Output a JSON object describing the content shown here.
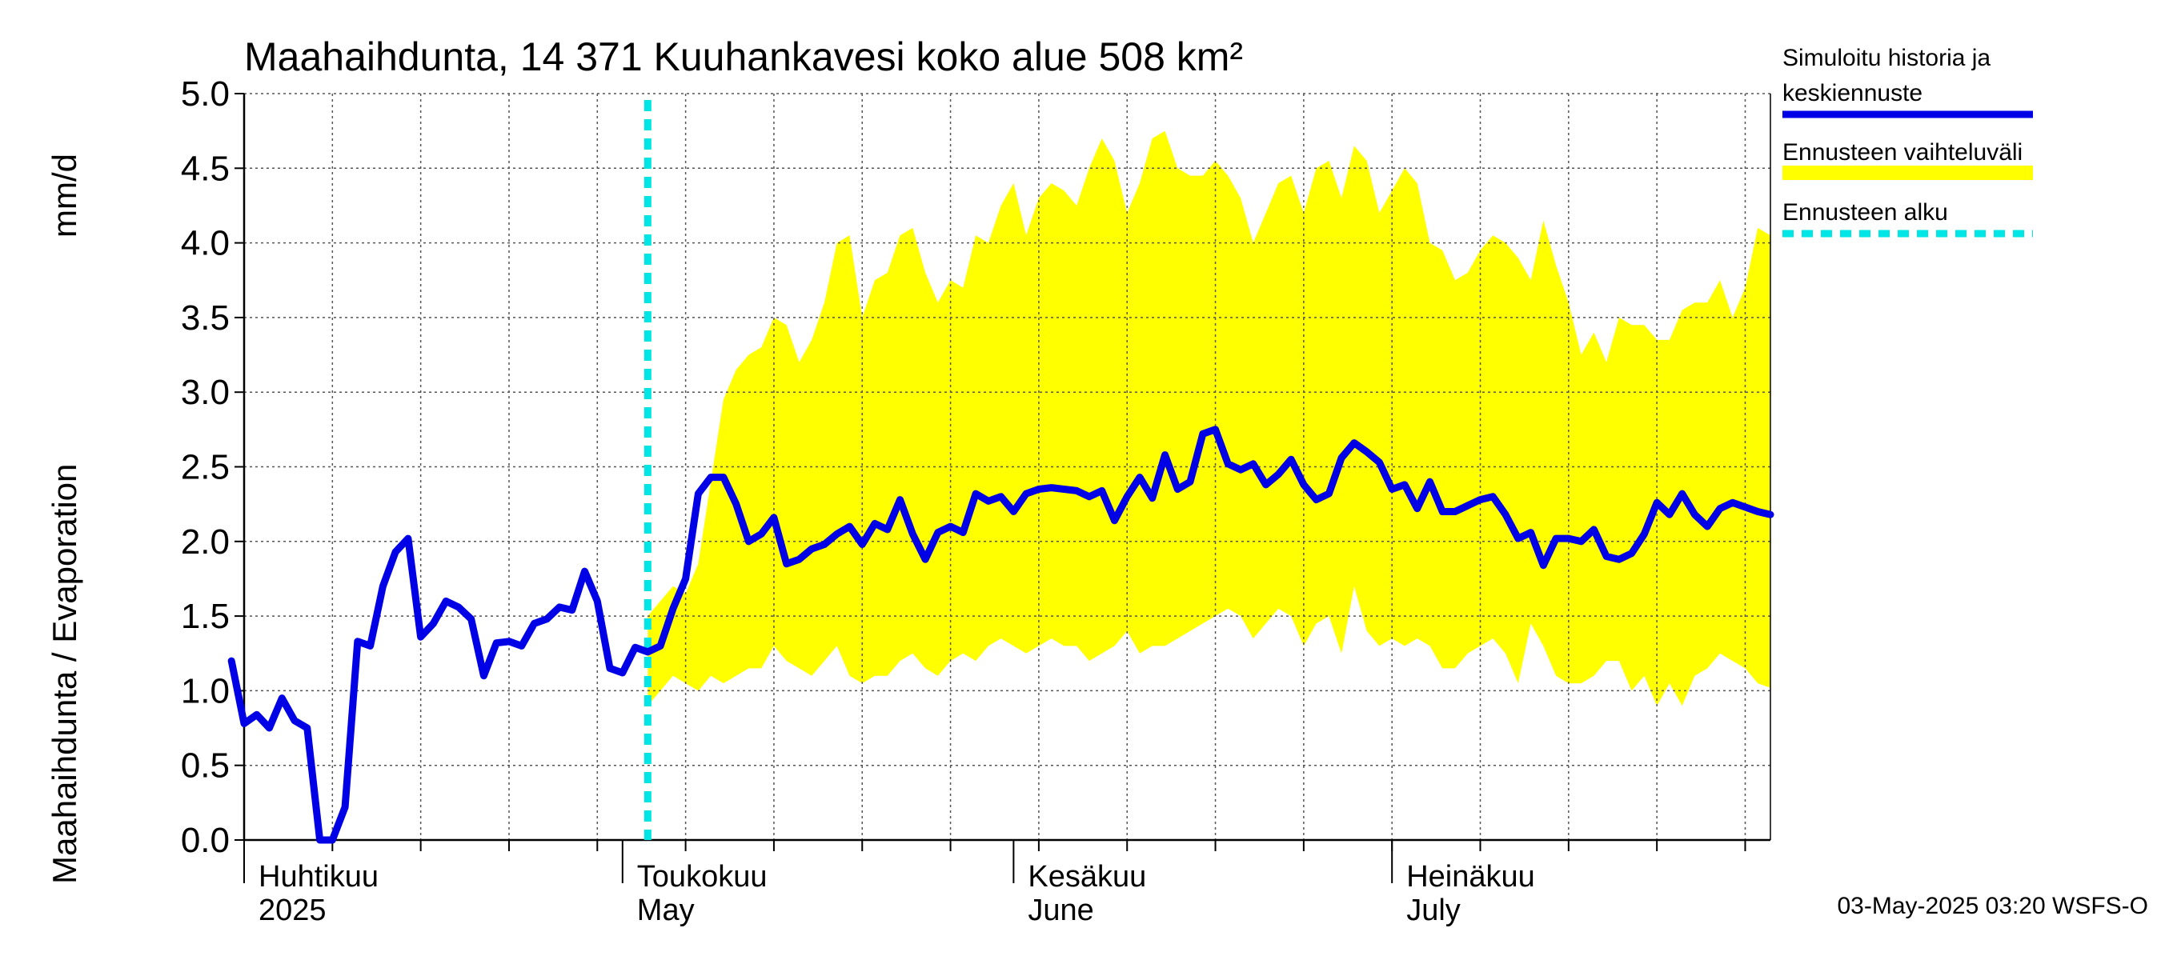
{
  "chart_data": {
    "type": "line",
    "title": "Maahaihdunta, 14 371 Kuuhankavesi koko alue 508 km²",
    "ylabel_left": "Maahaihdunta / Evaporation",
    "ylabel_unit": "mm/d",
    "ylim": [
      0,
      5.0
    ],
    "yticks": [
      "0.0",
      "0.5",
      "1.0",
      "1.5",
      "2.0",
      "2.5",
      "3.0",
      "3.5",
      "4.0",
      "4.5",
      "5.0"
    ],
    "x_range": [
      "2025-04-01",
      "2025-07-31"
    ],
    "x_months": [
      {
        "line1": "Huhtikuu",
        "line2": "2025",
        "date": "2025-04-01"
      },
      {
        "line1": "Toukokuu",
        "line2": "May",
        "date": "2025-05-01"
      },
      {
        "line1": "Kesäkuu",
        "line2": "June",
        "date": "2025-06-01"
      },
      {
        "line1": "Heinäkuu",
        "line2": "July",
        "date": "2025-07-01"
      }
    ],
    "forecast_start": "2025-05-03",
    "grid": true,
    "legend_position": "right",
    "series": [
      {
        "name": "Simuloitu historia ja keskiennuste",
        "color": "#0000e6",
        "x": [
          "2025-03-31",
          "2025-04-01",
          "2025-04-02",
          "2025-04-03",
          "2025-04-04",
          "2025-04-05",
          "2025-04-06",
          "2025-04-07",
          "2025-04-08",
          "2025-04-09",
          "2025-04-10",
          "2025-04-11",
          "2025-04-12",
          "2025-04-13",
          "2025-04-14",
          "2025-04-15",
          "2025-04-16",
          "2025-04-17",
          "2025-04-18",
          "2025-04-19",
          "2025-04-20",
          "2025-04-21",
          "2025-04-22",
          "2025-04-23",
          "2025-04-24",
          "2025-04-25",
          "2025-04-26",
          "2025-04-27",
          "2025-04-28",
          "2025-04-29",
          "2025-04-30",
          "2025-05-01",
          "2025-05-02",
          "2025-05-03",
          "2025-05-04",
          "2025-05-05",
          "2025-05-06",
          "2025-05-07",
          "2025-05-08",
          "2025-05-09",
          "2025-05-10",
          "2025-05-11",
          "2025-05-12",
          "2025-05-13",
          "2025-05-14",
          "2025-05-15",
          "2025-05-16",
          "2025-05-17",
          "2025-05-18",
          "2025-05-19",
          "2025-05-20",
          "2025-05-21",
          "2025-05-22",
          "2025-05-23",
          "2025-05-24",
          "2025-05-25",
          "2025-05-26",
          "2025-05-27",
          "2025-05-28",
          "2025-05-29",
          "2025-05-30",
          "2025-05-31",
          "2025-06-01",
          "2025-06-02",
          "2025-06-03",
          "2025-06-04",
          "2025-06-05",
          "2025-06-06",
          "2025-06-07",
          "2025-06-08",
          "2025-06-09",
          "2025-06-10",
          "2025-06-11",
          "2025-06-12",
          "2025-06-13",
          "2025-06-14",
          "2025-06-15",
          "2025-06-16",
          "2025-06-17",
          "2025-06-18",
          "2025-06-19",
          "2025-06-20",
          "2025-06-21",
          "2025-06-22",
          "2025-06-23",
          "2025-06-24",
          "2025-06-25",
          "2025-06-26",
          "2025-06-27",
          "2025-06-28",
          "2025-06-29",
          "2025-06-30",
          "2025-07-01",
          "2025-07-02",
          "2025-07-03",
          "2025-07-04",
          "2025-07-05",
          "2025-07-06",
          "2025-07-07",
          "2025-07-08",
          "2025-07-09",
          "2025-07-10",
          "2025-07-11",
          "2025-07-12",
          "2025-07-13",
          "2025-07-14",
          "2025-07-15",
          "2025-07-16",
          "2025-07-17",
          "2025-07-18",
          "2025-07-19",
          "2025-07-20",
          "2025-07-21",
          "2025-07-22",
          "2025-07-23",
          "2025-07-24",
          "2025-07-25",
          "2025-07-26",
          "2025-07-27",
          "2025-07-28",
          "2025-07-29",
          "2025-07-30",
          "2025-07-31"
        ],
        "values": [
          1.2,
          0.78,
          0.84,
          0.75,
          0.95,
          0.8,
          0.75,
          0.0,
          0.0,
          0.22,
          1.33,
          1.3,
          1.7,
          1.93,
          2.02,
          1.36,
          1.45,
          1.6,
          1.56,
          1.48,
          1.1,
          1.32,
          1.33,
          1.3,
          1.45,
          1.48,
          1.56,
          1.54,
          1.8,
          1.6,
          1.15,
          1.12,
          1.29,
          1.26,
          1.3,
          1.55,
          1.75,
          2.32,
          2.43,
          2.43,
          2.25,
          2.0,
          2.05,
          2.16,
          1.85,
          1.88,
          1.95,
          1.98,
          2.05,
          2.1,
          1.98,
          2.12,
          2.08,
          2.28,
          2.05,
          1.88,
          2.06,
          2.1,
          2.06,
          2.32,
          2.27,
          2.3,
          2.2,
          2.32,
          2.35,
          2.36,
          2.35,
          2.34,
          2.3,
          2.34,
          2.14,
          2.3,
          2.43,
          2.29,
          2.58,
          2.35,
          2.4,
          2.72,
          2.75,
          2.52,
          2.48,
          2.52,
          2.38,
          2.45,
          2.55,
          2.38,
          2.28,
          2.32,
          2.56,
          2.66,
          2.6,
          2.53,
          2.35,
          2.38,
          2.22,
          2.4,
          2.2,
          2.2,
          2.24,
          2.28,
          2.3,
          2.18,
          2.02,
          2.06,
          1.84,
          2.02,
          2.02,
          2.0,
          2.08,
          1.9,
          1.88,
          1.92,
          2.05,
          2.26,
          2.18,
          2.32,
          2.18,
          2.1,
          2.22,
          2.26,
          2.23,
          2.2,
          2.18
        ]
      },
      {
        "name": "Ennusteen vaihteluväli",
        "color": "#ffff00",
        "x": [
          "2025-05-03",
          "2025-05-04",
          "2025-05-05",
          "2025-05-06",
          "2025-05-07",
          "2025-05-08",
          "2025-05-09",
          "2025-05-10",
          "2025-05-11",
          "2025-05-12",
          "2025-05-13",
          "2025-05-14",
          "2025-05-15",
          "2025-05-16",
          "2025-05-17",
          "2025-05-18",
          "2025-05-19",
          "2025-05-20",
          "2025-05-21",
          "2025-05-22",
          "2025-05-23",
          "2025-05-24",
          "2025-05-25",
          "2025-05-26",
          "2025-05-27",
          "2025-05-28",
          "2025-05-29",
          "2025-05-30",
          "2025-05-31",
          "2025-06-01",
          "2025-06-02",
          "2025-06-03",
          "2025-06-04",
          "2025-06-05",
          "2025-06-06",
          "2025-06-07",
          "2025-06-08",
          "2025-06-09",
          "2025-06-10",
          "2025-06-11",
          "2025-06-12",
          "2025-06-13",
          "2025-06-14",
          "2025-06-15",
          "2025-06-16",
          "2025-06-17",
          "2025-06-18",
          "2025-06-19",
          "2025-06-20",
          "2025-06-21",
          "2025-06-22",
          "2025-06-23",
          "2025-06-24",
          "2025-06-25",
          "2025-06-26",
          "2025-06-27",
          "2025-06-28",
          "2025-06-29",
          "2025-06-30",
          "2025-07-01",
          "2025-07-02",
          "2025-07-03",
          "2025-07-04",
          "2025-07-05",
          "2025-07-06",
          "2025-07-07",
          "2025-07-08",
          "2025-07-09",
          "2025-07-10",
          "2025-07-11",
          "2025-07-12",
          "2025-07-13",
          "2025-07-14",
          "2025-07-15",
          "2025-07-16",
          "2025-07-17",
          "2025-07-18",
          "2025-07-19",
          "2025-07-20",
          "2025-07-21",
          "2025-07-22",
          "2025-07-23",
          "2025-07-24",
          "2025-07-25",
          "2025-07-26",
          "2025-07-27",
          "2025-07-28",
          "2025-07-29",
          "2025-07-30",
          "2025-07-31"
        ],
        "upper": [
          1.5,
          1.6,
          1.7,
          1.65,
          1.85,
          2.4,
          2.95,
          3.15,
          3.25,
          3.3,
          3.5,
          3.45,
          3.2,
          3.35,
          3.6,
          4.0,
          4.05,
          3.5,
          3.75,
          3.8,
          4.05,
          4.1,
          3.8,
          3.6,
          3.75,
          3.7,
          4.05,
          4.0,
          4.25,
          4.4,
          4.05,
          4.3,
          4.4,
          4.35,
          4.25,
          4.5,
          4.7,
          4.55,
          4.2,
          4.4,
          4.7,
          4.75,
          4.5,
          4.45,
          4.45,
          4.55,
          4.45,
          4.3,
          4.0,
          4.2,
          4.4,
          4.45,
          4.2,
          4.5,
          4.55,
          4.3,
          4.65,
          4.55,
          4.2,
          4.35,
          4.5,
          4.4,
          4.0,
          3.95,
          3.75,
          3.8,
          3.95,
          4.05,
          4.0,
          3.9,
          3.75,
          4.15,
          3.85,
          3.6,
          3.25,
          3.4,
          3.2,
          3.5,
          3.45,
          3.45,
          3.35,
          3.35,
          3.55,
          3.6,
          3.6,
          3.75,
          3.5,
          3.7,
          4.1,
          4.05
        ],
        "lower": [
          0.9,
          1.0,
          1.1,
          1.05,
          1.0,
          1.1,
          1.05,
          1.1,
          1.15,
          1.15,
          1.3,
          1.2,
          1.15,
          1.1,
          1.2,
          1.3,
          1.1,
          1.05,
          1.1,
          1.1,
          1.2,
          1.25,
          1.15,
          1.1,
          1.2,
          1.25,
          1.2,
          1.3,
          1.35,
          1.3,
          1.25,
          1.3,
          1.35,
          1.3,
          1.3,
          1.2,
          1.25,
          1.3,
          1.4,
          1.25,
          1.3,
          1.3,
          1.35,
          1.4,
          1.45,
          1.5,
          1.55,
          1.5,
          1.35,
          1.45,
          1.55,
          1.5,
          1.3,
          1.45,
          1.5,
          1.25,
          1.7,
          1.4,
          1.3,
          1.35,
          1.3,
          1.35,
          1.3,
          1.15,
          1.15,
          1.25,
          1.3,
          1.35,
          1.25,
          1.05,
          1.45,
          1.3,
          1.1,
          1.05,
          1.05,
          1.1,
          1.2,
          1.2,
          1.0,
          1.1,
          0.9,
          1.05,
          0.9,
          1.1,
          1.15,
          1.25,
          1.2,
          1.15,
          1.05,
          1.02
        ]
      },
      {
        "name": "Ennusteen alku",
        "color": "#00e6e6"
      }
    ]
  },
  "footer": {
    "timestamp": "03-May-2025 03:20 WSFS-O"
  },
  "legend": {
    "line1_a": "Simuloitu historia ja",
    "line1_b": "keskiennuste",
    "line2": "Ennusteen vaihteluväli",
    "line3": "Ennusteen alku"
  }
}
